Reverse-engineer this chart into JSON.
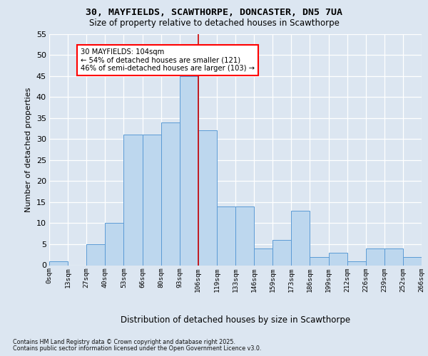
{
  "title_line1": "30, MAYFIELDS, SCAWTHORPE, DONCASTER, DN5 7UA",
  "title_line2": "Size of property relative to detached houses in Scawthorpe",
  "xlabel": "Distribution of detached houses by size in Scawthorpe",
  "ylabel": "Number of detached properties",
  "bins": [
    "0sqm",
    "13sqm",
    "27sqm",
    "40sqm",
    "53sqm",
    "66sqm",
    "80sqm",
    "93sqm",
    "106sqm",
    "119sqm",
    "133sqm",
    "146sqm",
    "159sqm",
    "173sqm",
    "186sqm",
    "199sqm",
    "212sqm",
    "226sqm",
    "239sqm",
    "252sqm",
    "266sqm"
  ],
  "bar_values": [
    1,
    0,
    5,
    10,
    31,
    31,
    34,
    45,
    32,
    14,
    14,
    4,
    6,
    13,
    2,
    3,
    1,
    4,
    4,
    2
  ],
  "bar_color": "#BDD7EE",
  "bar_edge_color": "#5B9BD5",
  "vline_x": 104,
  "vline_color": "#CC0000",
  "annotation_title": "30 MAYFIELDS: 104sqm",
  "annotation_line2": "← 54% of detached houses are smaller (121)",
  "annotation_line3": "46% of semi-detached houses are larger (103) →",
  "bg_color": "#DCE6F1",
  "ylim": [
    0,
    55
  ],
  "yticks": [
    0,
    5,
    10,
    15,
    20,
    25,
    30,
    35,
    40,
    45,
    50,
    55
  ],
  "bin_width": 13,
  "footer_line1": "Contains HM Land Registry data © Crown copyright and database right 2025.",
  "footer_line2": "Contains public sector information licensed under the Open Government Licence v3.0."
}
